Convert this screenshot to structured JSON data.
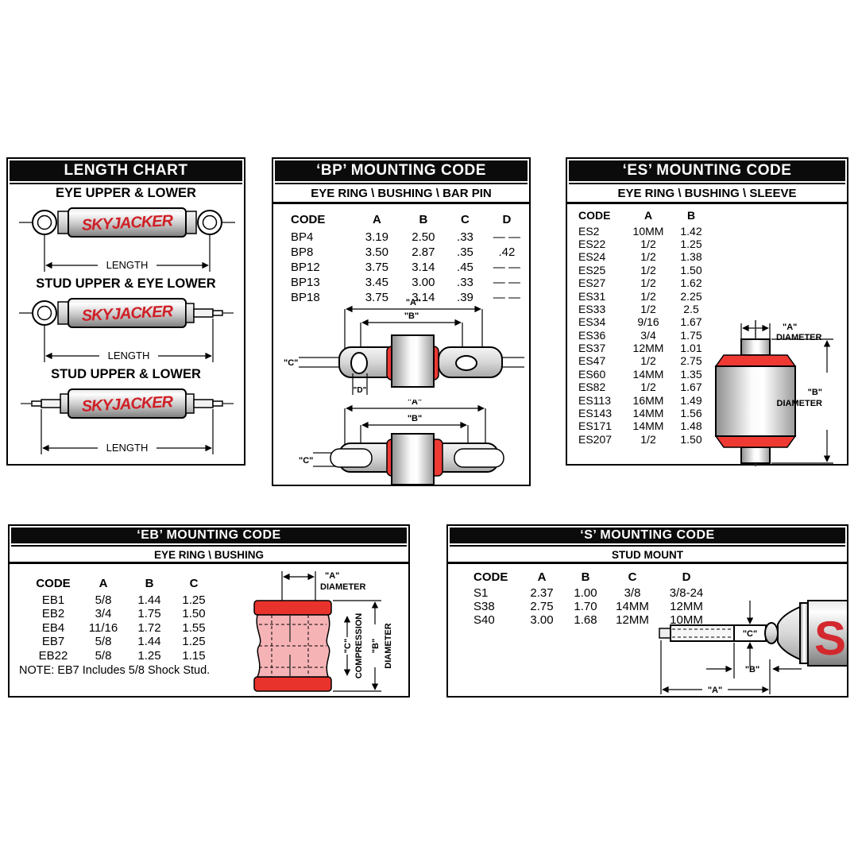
{
  "colors": {
    "logo_red": "#cf1f26",
    "bushing_red": "#ee3a33",
    "bushing_pink": "#f6b3b6",
    "title_bar": "#0b0b0b"
  },
  "length_chart": {
    "title": "LENGTH CHART",
    "logo_text": "SKYJACKER",
    "sections": [
      {
        "label": "EYE UPPER & LOWER",
        "dim": "LENGTH"
      },
      {
        "label": "STUD UPPER & EYE LOWER",
        "dim": "LENGTH"
      },
      {
        "label": "STUD UPPER & LOWER",
        "dim": "LENGTH"
      }
    ]
  },
  "bp": {
    "title": "‘BP’ MOUNTING CODE",
    "subtitle": "EYE RING \\ BUSHING \\ BAR PIN",
    "table": {
      "headers": [
        "CODE",
        "A",
        "B",
        "C",
        "D"
      ],
      "rows": [
        [
          "BP4",
          "3.19",
          "2.50",
          ".33",
          "— —"
        ],
        [
          "BP8",
          "3.50",
          "2.87",
          ".35",
          ".42"
        ],
        [
          "BP12",
          "3.75",
          "3.14",
          ".45",
          "— —"
        ],
        [
          "BP13",
          "3.45",
          "3.00",
          ".33",
          "— —"
        ],
        [
          "BP18",
          "3.75",
          "3.14",
          ".39",
          "— —"
        ]
      ]
    },
    "diagram1": {
      "a": "\"A\"",
      "b": "\"B\"",
      "c": "\"C\"",
      "d": "\"D\""
    },
    "diagram2": {
      "a": "\"A\"",
      "b": "\"B\"",
      "c": "\"C\""
    }
  },
  "es": {
    "title": "‘ES’ MOUNTING CODE",
    "subtitle": "EYE RING \\ BUSHING \\ SLEEVE",
    "table": {
      "headers": [
        "CODE",
        "A",
        "B"
      ],
      "rows": [
        [
          "ES2",
          "10MM",
          "1.42"
        ],
        [
          "ES22",
          "1/2",
          "1.25"
        ],
        [
          "ES24",
          "1/2",
          "1.38"
        ],
        [
          "ES25",
          "1/2",
          "1.50"
        ],
        [
          "ES27",
          "1/2",
          "1.62"
        ],
        [
          "ES31",
          "1/2",
          "2.25"
        ],
        [
          "ES33",
          "1/2",
          "2.5"
        ],
        [
          "ES34",
          "9/16",
          "1.67"
        ],
        [
          "ES36",
          "3/4",
          "1.75"
        ],
        [
          "ES37",
          "12MM",
          "1.01"
        ],
        [
          "ES47",
          "1/2",
          "2.75"
        ],
        [
          "ES60",
          "14MM",
          "1.35"
        ],
        [
          "ES82",
          "1/2",
          "1.67"
        ],
        [
          "ES113",
          "16MM",
          "1.49"
        ],
        [
          "ES143",
          "14MM",
          "1.56"
        ],
        [
          "ES171",
          "14MM",
          "1.48"
        ],
        [
          "ES207",
          "1/2",
          "1.50"
        ]
      ]
    },
    "diagram": {
      "a_label": "\"A\"",
      "a_sub": "DIAMETER",
      "b_label": "\"B\"",
      "b_sub": "DIAMETER"
    }
  },
  "eb": {
    "title": "‘EB’ MOUNTING CODE",
    "subtitle": "EYE RING \\ BUSHING",
    "table": {
      "headers": [
        "CODE",
        "A",
        "B",
        "C"
      ],
      "rows": [
        [
          "EB1",
          "5/8",
          "1.44",
          "1.25"
        ],
        [
          "EB2",
          "3/4",
          "1.75",
          "1.50"
        ],
        [
          "EB4",
          "11/16",
          "1.72",
          "1.55"
        ],
        [
          "EB7",
          "5/8",
          "1.44",
          "1.25"
        ],
        [
          "EB22",
          "5/8",
          "1.25",
          "1.15"
        ]
      ]
    },
    "note": "NOTE: EB7 Includes 5/8 Shock Stud.",
    "diagram": {
      "a_label": "\"A\"",
      "a_sub": "DIAMETER",
      "c_label": "\"C\"",
      "c_sub": "COMPRESSION",
      "b_label": "\"B\"",
      "b_sub": "DIAMETER"
    }
  },
  "s": {
    "title": "‘S’ MOUNTING CODE",
    "subtitle": "STUD MOUNT",
    "table": {
      "headers": [
        "CODE",
        "A",
        "B",
        "C",
        "D"
      ],
      "rows": [
        [
          "S1",
          "2.37",
          "1.00",
          "3/8",
          "3/8-24"
        ],
        [
          "S38",
          "2.75",
          "1.70",
          "14MM",
          "12MM"
        ],
        [
          "S40",
          "3.00",
          "1.68",
          "12MM",
          "10MM"
        ]
      ]
    },
    "diagram": {
      "a": "\"A\"",
      "b": "\"B\"",
      "c": "\"C\"",
      "logo": "SK"
    }
  }
}
